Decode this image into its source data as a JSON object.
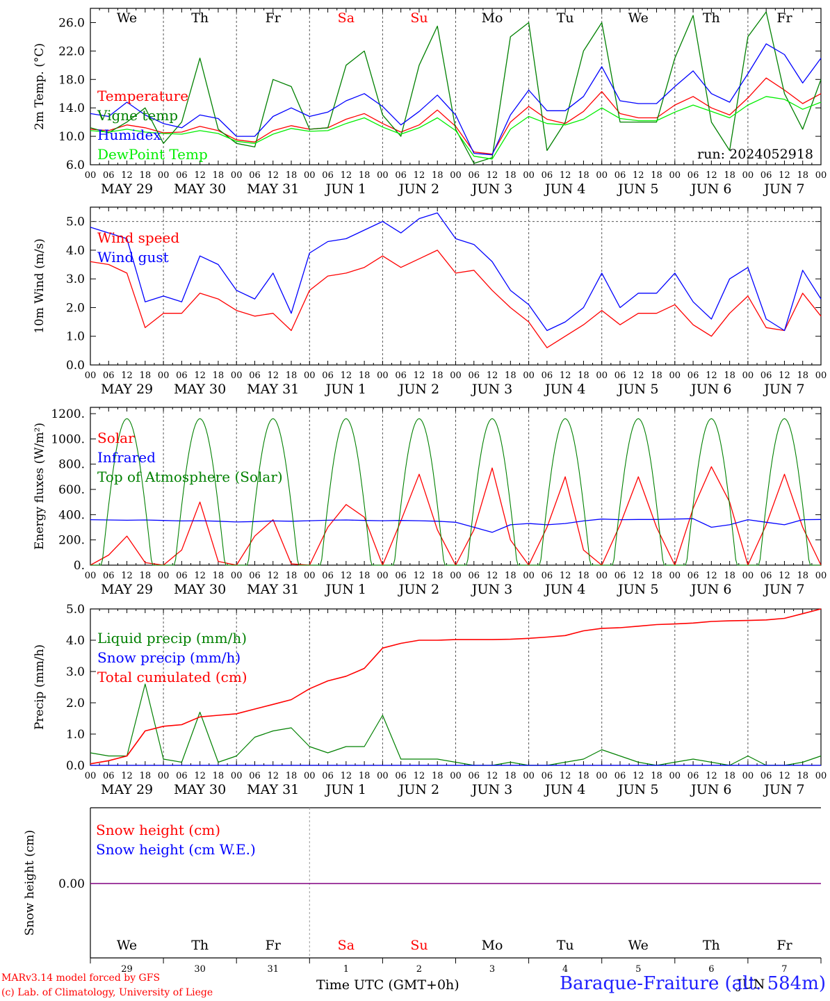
{
  "footer": {
    "credit_line1": "MARv3.14 model forced by GFS",
    "credit_line2": "(c) Lab. of Climatology, University of Liege",
    "time_label": "Time UTC (GMT+0h)",
    "station": "Baraque-Fraiture (alt. 584m)",
    "month_stamp": "JUN"
  },
  "colors": {
    "red": "#ff0000",
    "blue": "#0000ff",
    "green": "#008000",
    "lightgreen": "#00ee00",
    "purple": "#800080"
  },
  "days": {
    "dow": [
      "We",
      "Th",
      "Fr",
      "Sa",
      "Su",
      "Mo",
      "Tu",
      "We",
      "Th",
      "Fr"
    ],
    "weekend_flags": [
      false,
      false,
      false,
      true,
      true,
      false,
      false,
      false,
      false,
      false
    ],
    "dates": [
      "MAY 29",
      "MAY 30",
      "MAY 31",
      "JUN  1",
      "JUN  2",
      "JUN  3",
      "JUN  4",
      "JUN  5",
      "JUN  6",
      "JUN  7"
    ],
    "day_numbers": [
      "29",
      "30",
      "31",
      "1",
      "2",
      "3",
      "4",
      "5",
      "6",
      "7"
    ],
    "hour_ticks": [
      "00",
      "06",
      "12",
      "18"
    ],
    "final_hour": "00"
  },
  "chart_data": [
    {
      "type": "line",
      "ylabel": "2m Temp. (°C)",
      "ylim": [
        6,
        28
      ],
      "yticks": [
        "6.0",
        "10.0",
        "14.0",
        "18.0",
        "22.0",
        "26.0"
      ],
      "annotation": "run: 2024052918",
      "x_hours": [
        0,
        6,
        12,
        18,
        24,
        30,
        36,
        42,
        48,
        54,
        60,
        66,
        72,
        78,
        84,
        90,
        96,
        102,
        108,
        114,
        120,
        126,
        132,
        138,
        144,
        150,
        156,
        162,
        168,
        174,
        180,
        186,
        192,
        198,
        204,
        210,
        216,
        222,
        228,
        234,
        240
      ],
      "series": [
        {
          "name": "Temperature",
          "color": "red",
          "values": [
            11.0,
            10.8,
            11.6,
            11.2,
            10.5,
            10.6,
            11.4,
            10.8,
            9.5,
            9.2,
            10.8,
            11.5,
            11.0,
            11.2,
            12.4,
            13.2,
            11.8,
            10.6,
            11.6,
            13.7,
            11.4,
            7.8,
            7.5,
            12.0,
            14.2,
            12.4,
            11.8,
            13.5,
            16.3,
            13.2,
            12.6,
            12.6,
            14.4,
            15.6,
            14.0,
            13.0,
            15.4,
            18.2,
            16.5,
            14.6,
            16.0
          ]
        },
        {
          "name": "Vigne temp",
          "color": "green",
          "values": [
            11.2,
            10.5,
            12.0,
            14.0,
            9.0,
            12.0,
            21.0,
            11.0,
            9.0,
            8.5,
            18.0,
            17.0,
            11.0,
            11.2,
            20.0,
            22.0,
            13.0,
            10.0,
            20.0,
            25.5,
            11.0,
            6.2,
            7.0,
            24.0,
            26.0,
            8.0,
            12.0,
            22.0,
            26.0,
            12.0,
            12.0,
            12.0,
            21.0,
            27.0,
            12.0,
            8.0,
            24.0,
            27.5,
            16.0,
            11.0,
            18.0
          ]
        },
        {
          "name": "Humidex",
          "color": "blue",
          "values": [
            13.2,
            12.8,
            14.8,
            13.0,
            11.8,
            11.2,
            13.0,
            12.5,
            10.0,
            10.0,
            12.8,
            14.0,
            12.8,
            13.4,
            15.0,
            16.0,
            14.2,
            11.6,
            13.5,
            15.8,
            13.0,
            7.6,
            7.4,
            13.0,
            16.5,
            13.6,
            13.6,
            15.6,
            19.8,
            15.0,
            14.6,
            14.6,
            17.0,
            19.2,
            16.0,
            14.8,
            18.8,
            23.0,
            21.5,
            17.5,
            21.0
          ]
        },
        {
          "name": "DewPoint Temp",
          "color": "lightgreen",
          "values": [
            10.8,
            10.6,
            11.0,
            10.6,
            10.4,
            10.3,
            10.8,
            10.4,
            9.3,
            9.0,
            10.3,
            11.1,
            10.7,
            10.8,
            11.8,
            12.6,
            11.3,
            10.3,
            11.2,
            12.6,
            10.8,
            7.2,
            6.8,
            11.0,
            12.8,
            11.8,
            11.6,
            12.4,
            14.0,
            12.5,
            12.2,
            12.2,
            13.4,
            14.4,
            13.5,
            12.6,
            14.4,
            15.6,
            15.2,
            13.8,
            14.8
          ]
        }
      ]
    },
    {
      "type": "line",
      "ylabel": "10m Wind (m/s)",
      "ylim": [
        0,
        5.5
      ],
      "yticks": [
        "0.0",
        "1.0",
        "2.0",
        "3.0",
        "4.0",
        "5.0"
      ],
      "x_hours": [
        0,
        6,
        12,
        18,
        24,
        30,
        36,
        42,
        48,
        54,
        60,
        66,
        72,
        78,
        84,
        90,
        96,
        102,
        108,
        114,
        120,
        126,
        132,
        138,
        144,
        150,
        156,
        162,
        168,
        174,
        180,
        186,
        192,
        198,
        204,
        210,
        216,
        222,
        228,
        234,
        240
      ],
      "series": [
        {
          "name": "Wind speed",
          "color": "red",
          "values": [
            3.6,
            3.5,
            3.2,
            1.3,
            1.8,
            1.8,
            2.5,
            2.3,
            1.9,
            1.7,
            1.8,
            1.2,
            2.6,
            3.1,
            3.2,
            3.4,
            3.8,
            3.4,
            3.7,
            4.0,
            3.2,
            3.3,
            2.6,
            2.0,
            1.5,
            0.6,
            1.0,
            1.4,
            1.9,
            1.4,
            1.8,
            1.8,
            2.1,
            1.4,
            1.0,
            1.8,
            2.4,
            1.3,
            1.2,
            2.5,
            1.7
          ]
        },
        {
          "name": "Wind gust",
          "color": "blue",
          "values": [
            4.8,
            4.6,
            4.4,
            2.2,
            2.4,
            2.2,
            3.8,
            3.5,
            2.6,
            2.3,
            3.2,
            1.8,
            3.9,
            4.3,
            4.4,
            4.7,
            5.0,
            4.6,
            5.1,
            5.3,
            4.4,
            4.2,
            3.6,
            2.6,
            2.1,
            1.2,
            1.5,
            2.0,
            3.2,
            2.0,
            2.5,
            2.5,
            3.2,
            2.2,
            1.6,
            3.0,
            3.4,
            1.6,
            1.2,
            3.3,
            2.3
          ]
        }
      ]
    },
    {
      "type": "line",
      "ylabel": "Energy fluxes (W/m²)",
      "ylim": [
        0,
        1250
      ],
      "yticks": [
        "0.",
        "200.",
        "400.",
        "600.",
        "800.",
        "1000.",
        "1200."
      ],
      "x_hours": [
        0,
        6,
        12,
        18,
        24,
        30,
        36,
        42,
        48,
        54,
        60,
        66,
        72,
        78,
        84,
        90,
        96,
        102,
        108,
        114,
        120,
        126,
        132,
        138,
        144,
        150,
        156,
        162,
        168,
        174,
        180,
        186,
        192,
        198,
        204,
        210,
        216,
        222,
        228,
        234,
        240
      ],
      "series": [
        {
          "name": "Solar",
          "color": "red",
          "values": [
            0,
            80,
            230,
            20,
            0,
            120,
            500,
            30,
            0,
            230,
            360,
            10,
            0,
            300,
            480,
            380,
            0,
            350,
            720,
            280,
            0,
            280,
            770,
            200,
            0,
            300,
            700,
            120,
            0,
            320,
            700,
            300,
            0,
            450,
            780,
            500,
            0,
            320,
            720,
            300,
            0
          ]
        },
        {
          "name": "Infrared",
          "color": "blue",
          "values": [
            360,
            358,
            356,
            358,
            354,
            350,
            352,
            348,
            342,
            345,
            350,
            348,
            352,
            356,
            358,
            354,
            352,
            354,
            352,
            348,
            340,
            300,
            260,
            320,
            330,
            320,
            330,
            350,
            365,
            360,
            362,
            362,
            365,
            368,
            300,
            320,
            360,
            340,
            320,
            360,
            362
          ]
        },
        {
          "name": "Top of Atmosphere (Solar)",
          "color": "green",
          "daily": {
            "sunrise_h": 3.8,
            "sunset_h": 20.2,
            "peak": 1160
          }
        }
      ]
    },
    {
      "type": "line",
      "ylabel": "Precip (mm/h)",
      "ylim": [
        0,
        5
      ],
      "yticks": [
        "0.0",
        "1.0",
        "2.0",
        "3.0",
        "4.0",
        "5.0"
      ],
      "x_hours": [
        0,
        6,
        12,
        18,
        24,
        30,
        36,
        42,
        48,
        54,
        60,
        66,
        72,
        78,
        84,
        90,
        96,
        102,
        108,
        114,
        120,
        126,
        132,
        138,
        144,
        150,
        156,
        162,
        168,
        174,
        180,
        186,
        192,
        198,
        204,
        210,
        216,
        222,
        228,
        234,
        240
      ],
      "series": [
        {
          "name": "Liquid precip (mm/h)",
          "color": "green",
          "values": [
            0.4,
            0.3,
            0.3,
            2.6,
            0.2,
            0.1,
            1.7,
            0.1,
            0.3,
            0.9,
            1.1,
            1.2,
            0.6,
            0.4,
            0.6,
            0.6,
            1.6,
            0.2,
            0.2,
            0.2,
            0.1,
            0.0,
            0.0,
            0.1,
            0.0,
            0.0,
            0.1,
            0.2,
            0.5,
            0.3,
            0.1,
            0.0,
            0.1,
            0.2,
            0.1,
            0.0,
            0.3,
            0.0,
            0.0,
            0.1,
            0.3
          ]
        },
        {
          "name": "Snow precip (mm/h)",
          "color": "blue",
          "values": [
            0,
            0,
            0,
            0,
            0,
            0,
            0,
            0,
            0,
            0,
            0,
            0,
            0,
            0,
            0,
            0,
            0,
            0,
            0,
            0,
            0,
            0,
            0,
            0,
            0,
            0,
            0,
            0,
            0,
            0,
            0,
            0,
            0,
            0,
            0,
            0,
            0,
            0,
            0,
            0,
            0
          ]
        },
        {
          "name": "Total cumulated (cm)",
          "color": "red",
          "values": [
            0.05,
            0.15,
            0.3,
            1.1,
            1.25,
            1.3,
            1.55,
            1.6,
            1.65,
            1.8,
            1.95,
            2.1,
            2.45,
            2.7,
            2.85,
            3.1,
            3.75,
            3.9,
            4.0,
            4.0,
            4.02,
            4.02,
            4.02,
            4.03,
            4.06,
            4.1,
            4.15,
            4.3,
            4.38,
            4.4,
            4.45,
            4.5,
            4.52,
            4.55,
            4.6,
            4.62,
            4.63,
            4.65,
            4.7,
            4.85,
            5.0
          ]
        }
      ]
    },
    {
      "type": "line",
      "ylabel": "Snow height (cm)",
      "yticks": [
        "0.00"
      ],
      "series": [
        {
          "name": "Snow height (cm)",
          "color": "red",
          "values": [
            0,
            0
          ]
        },
        {
          "name": "Snow height (cm W.E.)",
          "color": "blue",
          "values": [
            0,
            0
          ]
        }
      ]
    }
  ]
}
